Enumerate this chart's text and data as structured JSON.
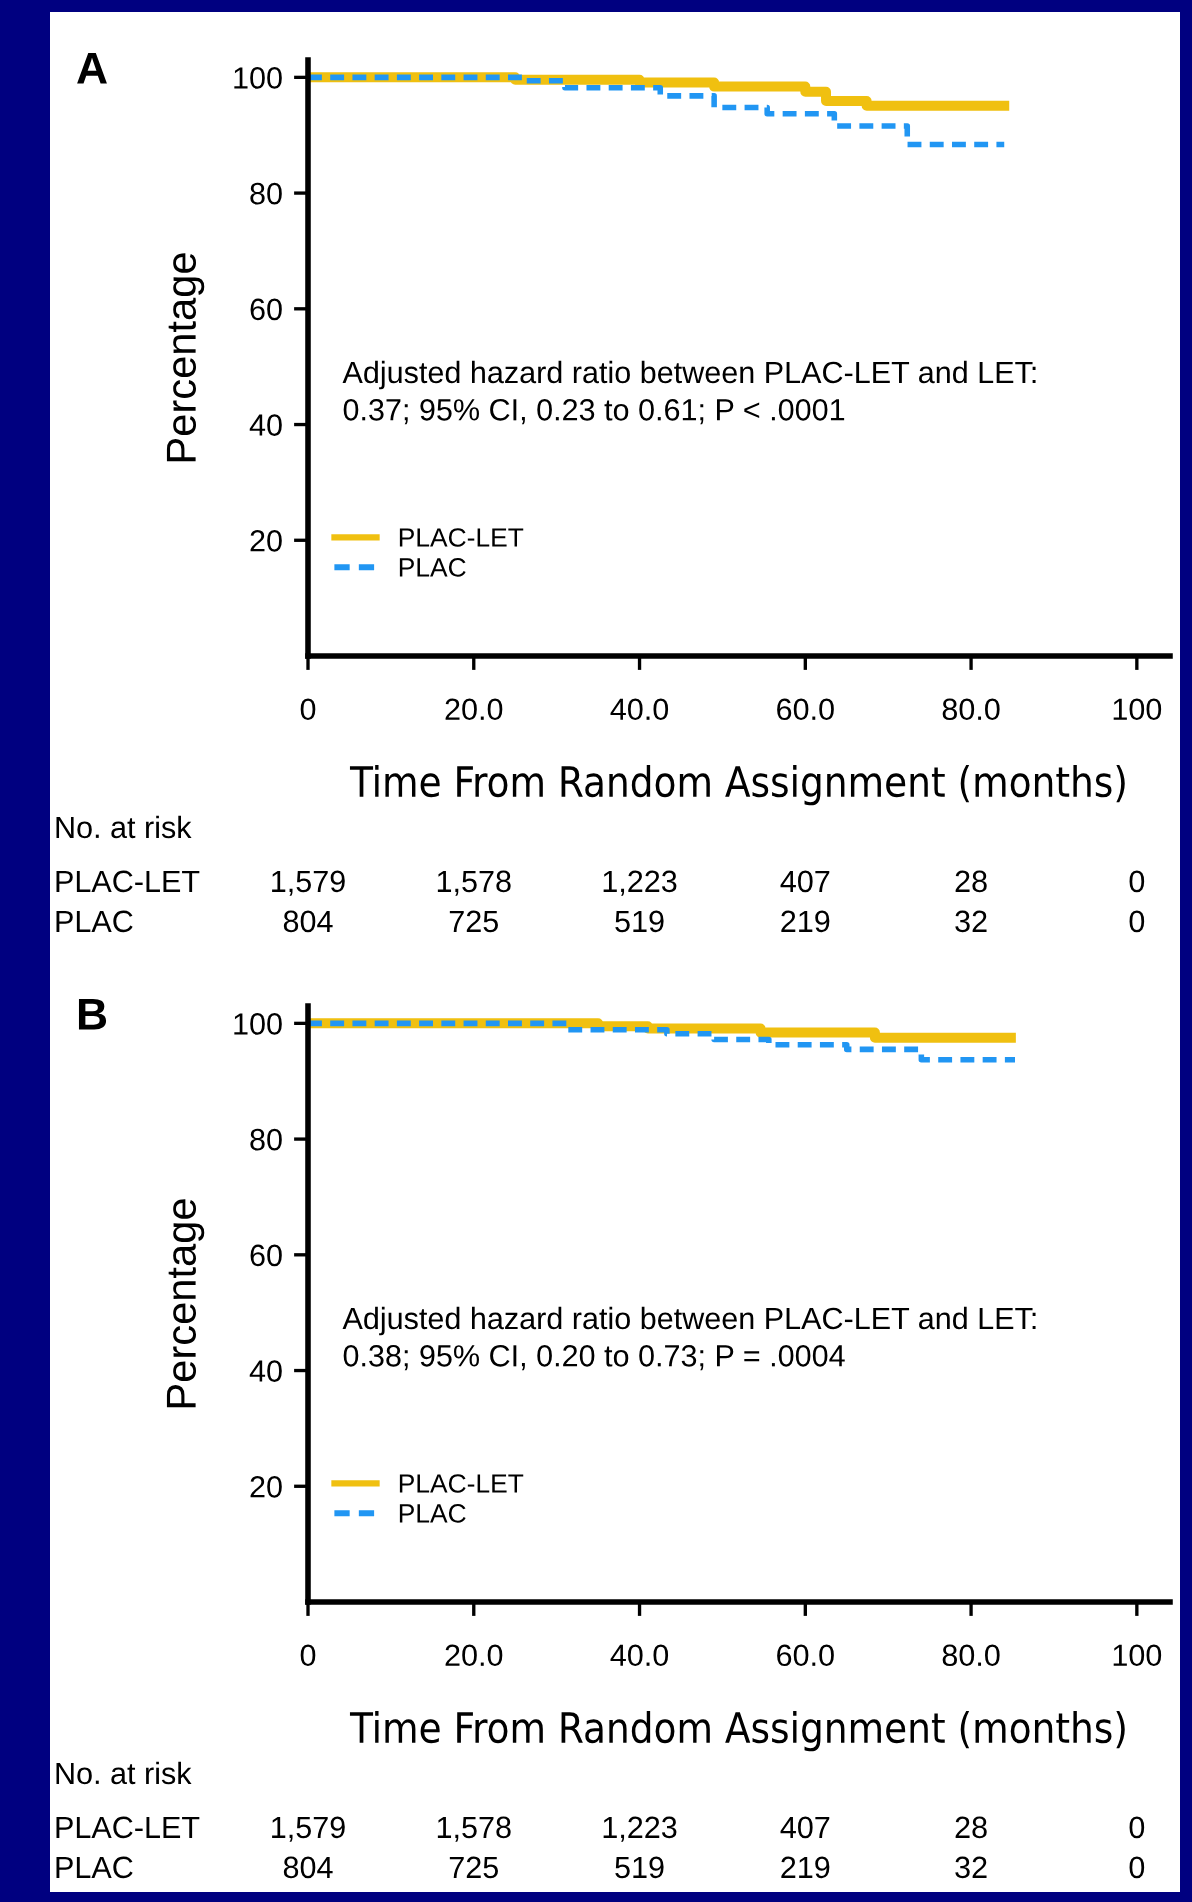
{
  "chart_data": [
    {
      "type": "step",
      "title": "A",
      "xlabel": "Time From Random Assignment (months)",
      "ylabel": "Percentage",
      "xlim": [
        0,
        104
      ],
      "ylim": [
        0,
        103
      ],
      "xticks": [
        {
          "value": 0,
          "label": "0"
        },
        {
          "value": 20,
          "label": "20.0"
        },
        {
          "value": 40,
          "label": "40.0"
        },
        {
          "value": 60,
          "label": "60.0"
        },
        {
          "value": 80,
          "label": "80.0"
        },
        100
      ],
      "yticks": [
        20,
        40,
        60,
        80,
        100
      ],
      "grid": false,
      "legend": "bottom left",
      "marker": "none",
      "series": [
        {
          "name": "PLAC-LET",
          "color": "#f0c010",
          "line_style": "solid",
          "x": [
            0,
            25,
            40,
            49,
            60,
            62.5,
            67.4,
            84
          ],
          "values": [
            100,
            99.6,
            99.1,
            98.4,
            97.5,
            95.9,
            95.1,
            95.1
          ]
        },
        {
          "name": "PLAC",
          "color": "#2196f3",
          "line_style": "dashed",
          "x": [
            0,
            26,
            31,
            42.5,
            49,
            55.4,
            63.5,
            72.3,
            84
          ],
          "values": [
            100,
            99.4,
            98.2,
            96.8,
            94.8,
            93.7,
            91.6,
            88.4,
            88.4
          ]
        }
      ],
      "annotations": [
        "Adjusted hazard ratio between PLAC-LET and LET:\n0.37; 95% CI, 0.23 to 0.61; P < .0001",
        "No. at risk",
        "PLAC-LET",
        "1,579",
        "1,578",
        "1,223",
        "407",
        "28",
        "0",
        "PLAC",
        "804",
        "725",
        "519",
        "219",
        "32",
        "0"
      ]
    },
    {
      "type": "step",
      "title": "B",
      "xlabel": "Time From Random Assignment (months)",
      "ylabel": "Percentage",
      "xlim": [
        0,
        104
      ],
      "ylim": [
        0,
        103
      ],
      "xticks": [
        {
          "value": 0,
          "label": "0"
        },
        {
          "value": 20,
          "label": "20.0"
        },
        {
          "value": 40,
          "label": "40.0"
        },
        {
          "value": 60,
          "label": "60.0"
        },
        {
          "value": 80,
          "label": "80.0"
        },
        100
      ],
      "yticks": [
        20,
        40,
        60,
        80,
        100
      ],
      "grid": false,
      "legend": "bottom left",
      "marker": "none",
      "series": [
        {
          "name": "PLAC-LET",
          "color": "#f0c010",
          "line_style": "solid",
          "x": [
            0,
            35,
            41,
            54.6,
            68.4,
            84.8
          ],
          "values": [
            100,
            99.5,
            99.1,
            98.4,
            97.5,
            97.5
          ]
        },
        {
          "name": "PLAC",
          "color": "#2196f3",
          "line_style": "dashed",
          "x": [
            0,
            31.2,
            43.3,
            49,
            55.6,
            65,
            74,
            85.3
          ],
          "values": [
            100,
            98.9,
            98.2,
            97.2,
            96.3,
            95.5,
            93.7,
            93.7
          ]
        }
      ],
      "annotations": [
        "Adjusted hazard ratio between PLAC-LET and LET:\n0.38; 95% CI, 0.20 to 0.73; P = .0004",
        "No. at risk",
        "PLAC-LET",
        "1,579",
        "1,578",
        "1,223",
        "407",
        "28",
        "0",
        "PLAC",
        "804",
        "725",
        "519",
        "219",
        "32",
        "0"
      ]
    }
  ]
}
